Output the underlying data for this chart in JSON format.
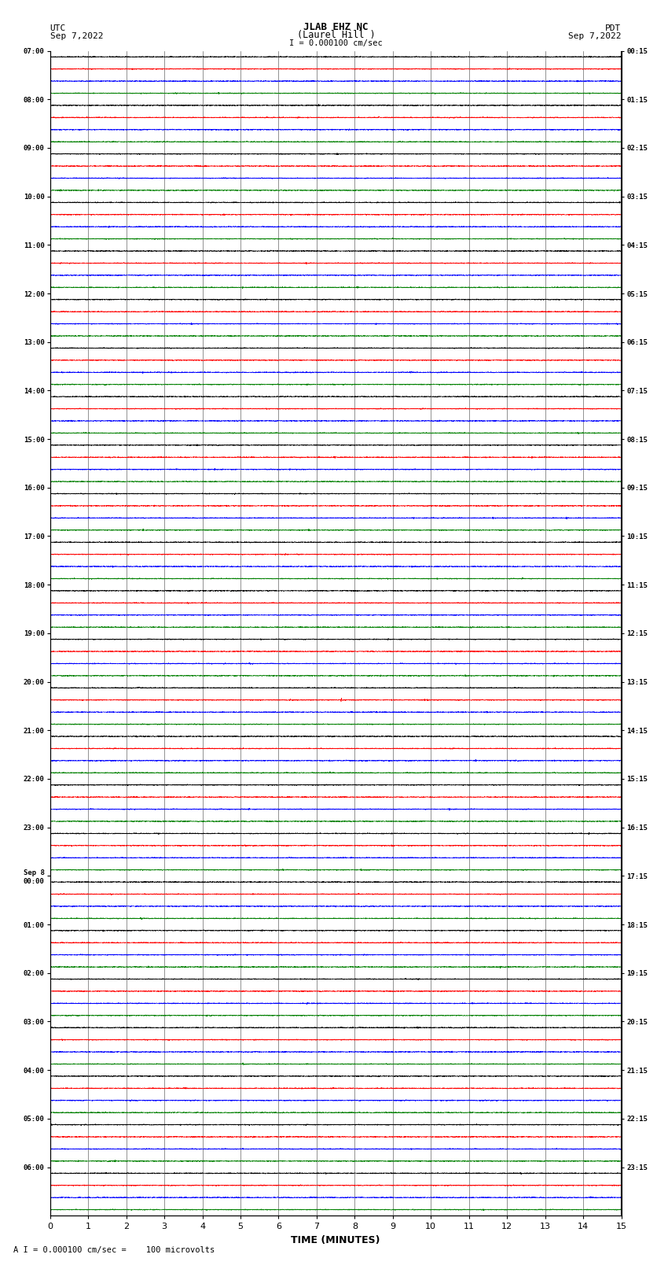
{
  "title_line1": "JLAB EHZ NC",
  "title_line2": "(Laurel Hill )",
  "scale_text": "I = 0.000100 cm/sec",
  "left_label_line1": "UTC",
  "left_label_line2": "Sep 7,2022",
  "right_label_line1": "PDT",
  "right_label_line2": "Sep 7,2022",
  "utc_times": [
    "07:00",
    "08:00",
    "09:00",
    "10:00",
    "11:00",
    "12:00",
    "13:00",
    "14:00",
    "15:00",
    "16:00",
    "17:00",
    "18:00",
    "19:00",
    "20:00",
    "21:00",
    "22:00",
    "23:00",
    "Sep 8\n00:00",
    "01:00",
    "02:00",
    "03:00",
    "04:00",
    "05:00",
    "06:00"
  ],
  "pdt_times": [
    "00:15",
    "01:15",
    "02:15",
    "03:15",
    "04:15",
    "05:15",
    "06:15",
    "07:15",
    "08:15",
    "09:15",
    "10:15",
    "11:15",
    "12:15",
    "13:15",
    "14:15",
    "15:15",
    "16:15",
    "17:15",
    "18:15",
    "19:15",
    "20:15",
    "21:15",
    "22:15",
    "23:15"
  ],
  "n_rows": 24,
  "n_traces_per_row": 4,
  "trace_colors": [
    "black",
    "red",
    "blue",
    "green"
  ],
  "noise_amplitude": 0.018,
  "xlabel": "TIME (MINUTES)",
  "footer_text": "A I = 0.000100 cm/sec =    100 microvolts",
  "background_color": "white",
  "x_ticks": [
    0,
    1,
    2,
    3,
    4,
    5,
    6,
    7,
    8,
    9,
    10,
    11,
    12,
    13,
    14,
    15
  ],
  "event_row": 13,
  "event_trace": 1,
  "event_time": 6.3,
  "event_amplitude": 0.08,
  "event_row2": 13,
  "event_trace2": 1,
  "event_time2": 7.65,
  "event_amplitude2": 0.18
}
